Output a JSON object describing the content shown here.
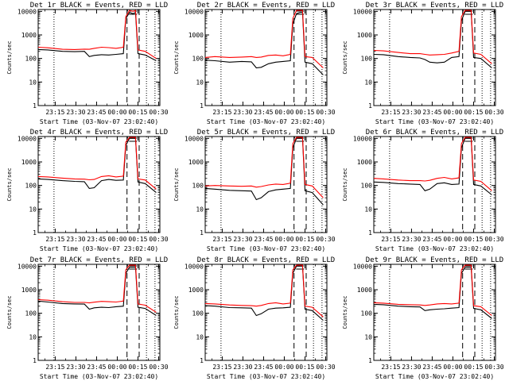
{
  "chart_data": [
    {
      "type": "line",
      "title": "Det 1r BLACK = Events, RED = LLD",
      "xlabel": "Start Time (03-Nov-07 23:02:40)",
      "ylabel": "Counts/sec",
      "yscale": "log",
      "ylim": [
        1,
        12000
      ],
      "xticks": [
        "23:15",
        "23:30",
        "23:45",
        "00:00",
        "00:15",
        "00:30"
      ],
      "yticks": [
        "1",
        "10",
        "100",
        "1000",
        "10000"
      ],
      "series": [
        {
          "color": "#000000",
          "values": [
            240,
            230,
            200,
            195,
            200,
            120,
            135,
            145,
            140,
            150,
            160,
            5000,
            9000,
            8000,
            9000,
            160,
            140,
            80
          ]
        },
        {
          "color": "#ff0000",
          "values": [
            300,
            285,
            245,
            240,
            250,
            245,
            270,
            300,
            290,
            270,
            300,
            6000,
            11000,
            10000,
            11000,
            230,
            200,
            100
          ]
        }
      ]
    },
    {
      "type": "line",
      "title": "Det 2r BLACK = Events, RED = LLD",
      "xlabel": "Start Time (03-Nov-07 23:02:40)",
      "ylabel": "Counts/sec",
      "yscale": "log",
      "ylim": [
        1,
        12000
      ],
      "xticks": [
        "23:15",
        "23:30",
        "23:45",
        "00:00",
        "00:15",
        "00:30"
      ],
      "yticks": [
        "1",
        "10",
        "100",
        "1000",
        "10000"
      ],
      "series": [
        {
          "color": "#000000",
          "values": [
            85,
            80,
            70,
            75,
            72,
            40,
            42,
            60,
            70,
            75,
            80,
            3000,
            8000,
            9000,
            9000,
            70,
            60,
            20
          ]
        },
        {
          "color": "#ff0000",
          "values": [
            110,
            120,
            110,
            115,
            120,
            110,
            115,
            135,
            140,
            130,
            150,
            5000,
            11000,
            11000,
            11000,
            120,
            110,
            40
          ]
        }
      ]
    },
    {
      "type": "line",
      "title": "Det 3r BLACK = Events, RED = LLD",
      "xlabel": "Start Time (03-Nov-07 23:02:40)",
      "ylabel": "Counts/sec",
      "yscale": "log",
      "ylim": [
        1,
        12000
      ],
      "xticks": [
        "23:15",
        "23:30",
        "23:45",
        "00:00",
        "00:15",
        "00:30"
      ],
      "yticks": [
        "1",
        "10",
        "100",
        "1000",
        "10000"
      ],
      "series": [
        {
          "color": "#000000",
          "values": [
            150,
            145,
            120,
            110,
            105,
            90,
            70,
            65,
            70,
            110,
            120,
            4000,
            10000,
            10000,
            10000,
            110,
            100,
            40
          ]
        },
        {
          "color": "#ff0000",
          "values": [
            220,
            210,
            180,
            160,
            160,
            150,
            140,
            145,
            150,
            170,
            200,
            6000,
            11000,
            11000,
            11000,
            170,
            150,
            60
          ]
        }
      ]
    },
    {
      "type": "line",
      "title": "Det 4r BLACK = Events, RED = LLD",
      "xlabel": "Start Time (03-Nov-07 23:02:40)",
      "ylabel": "Counts/sec",
      "yscale": "log",
      "ylim": [
        1,
        12000
      ],
      "xticks": [
        "23:15",
        "23:30",
        "23:45",
        "00:00",
        "00:15",
        "00:30"
      ],
      "yticks": [
        "1",
        "10",
        "100",
        "1000",
        "10000"
      ],
      "series": [
        {
          "color": "#000000",
          "values": [
            190,
            180,
            160,
            150,
            145,
            75,
            80,
            160,
            180,
            165,
            170,
            5000,
            10000,
            10000,
            10000,
            140,
            120,
            50
          ]
        },
        {
          "color": "#ff0000",
          "values": [
            240,
            230,
            205,
            190,
            185,
            175,
            180,
            240,
            260,
            230,
            250,
            7000,
            11000,
            11000,
            11000,
            190,
            170,
            70
          ]
        }
      ]
    },
    {
      "type": "line",
      "title": "Det 5r BLACK = Events, RED = LLD",
      "xlabel": "Start Time (03-Nov-07 23:02:40)",
      "ylabel": "Counts/sec",
      "yscale": "log",
      "ylim": [
        1,
        12000
      ],
      "xticks": [
        "23:15",
        "23:30",
        "23:45",
        "00:00",
        "00:15",
        "00:30"
      ],
      "yticks": [
        "1",
        "10",
        "100",
        "1000",
        "10000"
      ],
      "series": [
        {
          "color": "#000000",
          "values": [
            75,
            70,
            62,
            60,
            58,
            25,
            30,
            55,
            65,
            70,
            75,
            4000,
            10000,
            10000,
            10000,
            60,
            50,
            15
          ]
        },
        {
          "color": "#ff0000",
          "values": [
            95,
            100,
            95,
            92,
            95,
            85,
            90,
            105,
            115,
            110,
            125,
            6000,
            11000,
            11000,
            11000,
            110,
            95,
            30
          ]
        }
      ]
    },
    {
      "type": "line",
      "title": "Det 6r BLACK = Events, RED = LLD",
      "xlabel": "Start Time (03-Nov-07 23:02:40)",
      "ylabel": "Counts/sec",
      "yscale": "log",
      "ylim": [
        1,
        12000
      ],
      "xticks": [
        "23:15",
        "23:30",
        "23:45",
        "00:00",
        "00:15",
        "00:30"
      ],
      "yticks": [
        "1",
        "10",
        "100",
        "1000",
        "10000"
      ],
      "series": [
        {
          "color": "#000000",
          "values": [
            140,
            135,
            120,
            115,
            110,
            60,
            70,
            120,
            130,
            110,
            115,
            4000,
            10000,
            10000,
            10000,
            110,
            95,
            40
          ]
        },
        {
          "color": "#ff0000",
          "values": [
            200,
            190,
            170,
            160,
            160,
            155,
            165,
            200,
            220,
            190,
            210,
            6000,
            11000,
            11000,
            11000,
            170,
            150,
            60
          ]
        }
      ]
    },
    {
      "type": "line",
      "title": "Det 7r BLACK = Events, RED = LLD",
      "xlabel": "Start Time (03-Nov-07 23:02:40)",
      "ylabel": "Counts/sec",
      "yscale": "log",
      "ylim": [
        1,
        12000
      ],
      "xticks": [
        "23:15",
        "23:30",
        "23:45",
        "00:00",
        "00:15",
        "00:30"
      ],
      "yticks": [
        "1",
        "10",
        "100",
        "1000",
        "10000"
      ],
      "series": [
        {
          "color": "#000000",
          "values": [
            330,
            300,
            260,
            250,
            245,
            150,
            170,
            180,
            175,
            190,
            200,
            5000,
            9000,
            9000,
            9000,
            180,
            160,
            80
          ]
        },
        {
          "color": "#ff0000",
          "values": [
            380,
            360,
            310,
            290,
            290,
            275,
            295,
            320,
            310,
            300,
            330,
            7000,
            11000,
            11000,
            11000,
            250,
            220,
            110
          ]
        }
      ]
    },
    {
      "type": "line",
      "title": "Det 8r BLACK = Events, RED = LLD",
      "xlabel": "Start Time (03-Nov-07 23:02:40)",
      "ylabel": "Counts/sec",
      "yscale": "log",
      "ylim": [
        1,
        12000
      ],
      "xticks": [
        "23:15",
        "23:30",
        "23:45",
        "00:00",
        "00:15",
        "00:30"
      ],
      "yticks": [
        "1",
        "10",
        "100",
        "1000",
        "10000"
      ],
      "series": [
        {
          "color": "#000000",
          "values": [
            210,
            200,
            175,
            170,
            165,
            80,
            95,
            150,
            165,
            170,
            180,
            5000,
            10000,
            10000,
            10000,
            150,
            130,
            50
          ]
        },
        {
          "color": "#ff0000",
          "values": [
            260,
            250,
            225,
            215,
            210,
            200,
            215,
            260,
            280,
            250,
            270,
            7000,
            11000,
            11000,
            11000,
            200,
            180,
            70
          ]
        }
      ]
    },
    {
      "type": "line",
      "title": "Det 9r BLACK = Events, RED = LLD",
      "xlabel": "Start Time (03-Nov-07 23:02:40)",
      "ylabel": "Counts/sec",
      "yscale": "log",
      "ylim": [
        1,
        12000
      ],
      "xticks": [
        "23:15",
        "23:30",
        "23:45",
        "00:00",
        "00:15",
        "00:30"
      ],
      "yticks": [
        "1",
        "10",
        "100",
        "1000",
        "10000"
      ],
      "series": [
        {
          "color": "#000000",
          "values": [
            240,
            230,
            200,
            190,
            185,
            130,
            140,
            150,
            155,
            165,
            175,
            5000,
            9000,
            9000,
            9000,
            160,
            140,
            60
          ]
        },
        {
          "color": "#ff0000",
          "values": [
            280,
            270,
            240,
            230,
            225,
            215,
            225,
            250,
            260,
            250,
            270,
            7000,
            11000,
            11000,
            11000,
            210,
            190,
            80
          ]
        }
      ]
    }
  ]
}
